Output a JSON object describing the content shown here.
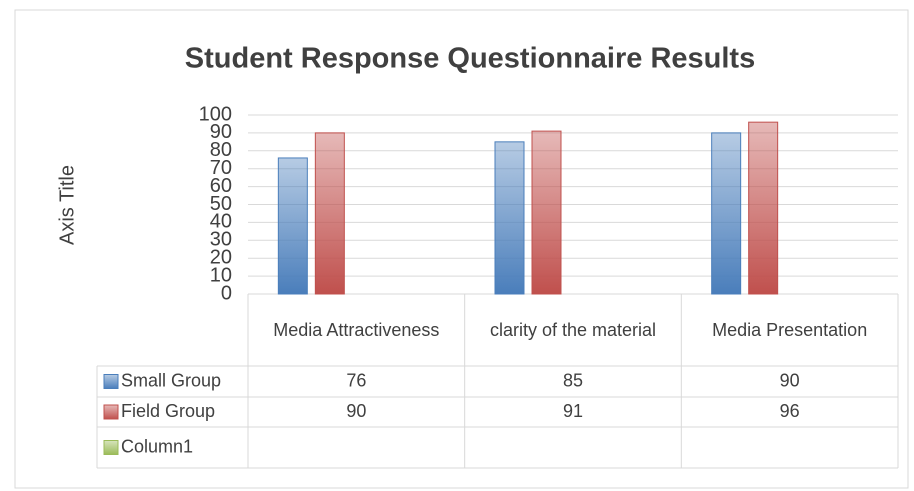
{
  "chart_data": {
    "type": "bar",
    "title": "Student Response Questionnaire Results",
    "y_axis_title": "Axis Title",
    "categories": [
      "Media Attractiveness",
      "clarity of the material",
      "Media Presentation"
    ],
    "series": [
      {
        "name": "Small Group",
        "color": "#4a7ebb",
        "values": [
          76,
          85,
          90
        ]
      },
      {
        "name": "Field Group",
        "color": "#c0504d",
        "values": [
          90,
          91,
          96
        ]
      },
      {
        "name": "Column1",
        "color": "#9bbb59",
        "values": [
          null,
          null,
          null
        ]
      }
    ],
    "ylim": [
      0,
      100
    ],
    "yticks": [
      0,
      10,
      20,
      30,
      40,
      50,
      60,
      70,
      80,
      90,
      100
    ],
    "grid": true,
    "data_table": true
  }
}
